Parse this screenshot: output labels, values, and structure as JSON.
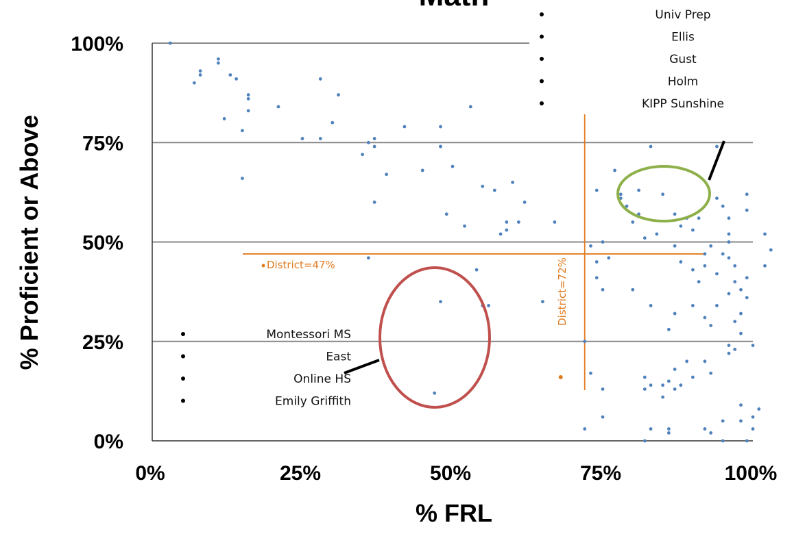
{
  "chart_data": {
    "type": "scatter",
    "title": "Math",
    "xlabel": "% FRL",
    "ylabel": "% Proficient or Above",
    "xlim": [
      0,
      100
    ],
    "ylim": [
      0,
      100
    ],
    "xticks": [
      "0%",
      "25%",
      "50%",
      "75%",
      "100%"
    ],
    "yticks": [
      "0%",
      "25%",
      "50%",
      "75%",
      "100%"
    ],
    "grid": "horizontal",
    "colors": {
      "points": "#4f81bd",
      "district": "#e07b1f",
      "green_ellipse": "#8db04a",
      "red_ellipse": "#c0504d"
    },
    "points": [
      [
        3,
        100
      ],
      [
        7,
        90
      ],
      [
        8,
        93
      ],
      [
        8,
        92
      ],
      [
        11,
        96
      ],
      [
        11,
        95
      ],
      [
        12,
        81
      ],
      [
        13,
        92
      ],
      [
        14,
        91
      ],
      [
        15,
        78
      ],
      [
        15,
        66
      ],
      [
        16,
        87
      ],
      [
        16,
        86
      ],
      [
        16,
        83
      ],
      [
        21,
        84
      ],
      [
        25,
        76
      ],
      [
        28,
        76
      ],
      [
        28,
        91
      ],
      [
        30,
        80
      ],
      [
        31,
        87
      ],
      [
        35,
        72
      ],
      [
        36,
        46
      ],
      [
        36,
        75
      ],
      [
        37,
        76
      ],
      [
        37,
        74
      ],
      [
        37,
        60
      ],
      [
        39,
        67
      ],
      [
        42,
        79
      ],
      [
        45,
        68
      ],
      [
        48,
        79
      ],
      [
        48,
        74
      ],
      [
        48,
        74
      ],
      [
        48,
        35
      ],
      [
        49,
        57
      ],
      [
        50,
        69
      ],
      [
        52,
        54
      ],
      [
        53,
        84
      ],
      [
        54,
        43
      ],
      [
        55,
        34
      ],
      [
        55,
        64
      ],
      [
        56,
        34
      ],
      [
        57,
        63
      ],
      [
        58,
        52
      ],
      [
        59,
        55
      ],
      [
        59,
        53
      ],
      [
        60,
        65
      ],
      [
        61,
        55
      ],
      [
        62,
        60
      ],
      [
        65,
        35
      ],
      [
        67,
        55
      ],
      [
        47,
        12
      ],
      [
        72,
        3
      ],
      [
        72,
        25
      ],
      [
        73,
        49
      ],
      [
        73,
        17
      ],
      [
        74,
        63
      ],
      [
        74,
        45
      ],
      [
        74,
        41
      ],
      [
        75,
        38
      ],
      [
        75,
        50
      ],
      [
        75,
        13
      ],
      [
        75,
        6
      ],
      [
        76,
        46
      ],
      [
        77,
        68
      ],
      [
        78,
        62
      ],
      [
        78,
        61
      ],
      [
        79,
        59
      ],
      [
        80,
        55
      ],
      [
        80,
        38
      ],
      [
        81,
        57
      ],
      [
        81,
        63
      ],
      [
        82,
        51
      ],
      [
        82,
        0
      ],
      [
        82,
        16
      ],
      [
        82,
        13
      ],
      [
        83,
        74
      ],
      [
        83,
        14
      ],
      [
        83,
        3
      ],
      [
        83,
        34
      ],
      [
        84,
        52
      ],
      [
        85,
        14
      ],
      [
        85,
        11
      ],
      [
        85,
        62
      ],
      [
        86,
        15
      ],
      [
        86,
        3
      ],
      [
        86,
        2
      ],
      [
        86,
        28
      ],
      [
        87,
        57
      ],
      [
        87,
        49
      ],
      [
        87,
        18
      ],
      [
        87,
        32
      ],
      [
        87,
        13
      ],
      [
        88,
        54
      ],
      [
        88,
        45
      ],
      [
        88,
        14
      ],
      [
        89,
        56
      ],
      [
        89,
        20
      ],
      [
        90,
        53
      ],
      [
        90,
        43
      ],
      [
        90,
        16
      ],
      [
        90,
        34
      ],
      [
        91,
        40
      ],
      [
        91,
        56
      ],
      [
        92,
        44
      ],
      [
        92,
        31
      ],
      [
        92,
        47
      ],
      [
        92,
        20
      ],
      [
        92,
        3
      ],
      [
        93,
        29
      ],
      [
        93,
        17
      ],
      [
        93,
        2
      ],
      [
        93,
        49
      ],
      [
        94,
        74
      ],
      [
        94,
        42
      ],
      [
        94,
        34
      ],
      [
        94,
        61
      ],
      [
        95,
        59
      ],
      [
        95,
        47
      ],
      [
        95,
        0
      ],
      [
        95,
        5
      ],
      [
        96,
        52
      ],
      [
        96,
        50
      ],
      [
        96,
        46
      ],
      [
        96,
        24
      ],
      [
        96,
        37
      ],
      [
        96,
        22
      ],
      [
        96,
        56
      ],
      [
        97,
        44
      ],
      [
        97,
        40
      ],
      [
        97,
        23
      ],
      [
        97,
        30
      ],
      [
        98,
        38
      ],
      [
        98,
        32
      ],
      [
        98,
        9
      ],
      [
        98,
        5
      ],
      [
        98,
        27
      ],
      [
        99,
        62
      ],
      [
        99,
        58
      ],
      [
        99,
        41
      ],
      [
        99,
        36
      ],
      [
        99,
        0
      ],
      [
        100,
        6
      ],
      [
        100,
        3
      ],
      [
        100,
        24
      ],
      [
        101,
        8
      ],
      [
        102,
        52
      ],
      [
        102,
        44
      ],
      [
        103,
        48
      ]
    ],
    "district": {
      "x": 72,
      "y": 47,
      "label_x": "District=72%",
      "label_y": "District=47%",
      "marker": [
        68,
        16
      ]
    },
    "top_list": [
      "Univ Prep",
      "Ellis",
      "Gust",
      "Holm",
      "KIPP Sunshine"
    ],
    "bottom_list": [
      "Montessori MS",
      "East",
      "Online HS",
      "Emily Griffith"
    ]
  }
}
